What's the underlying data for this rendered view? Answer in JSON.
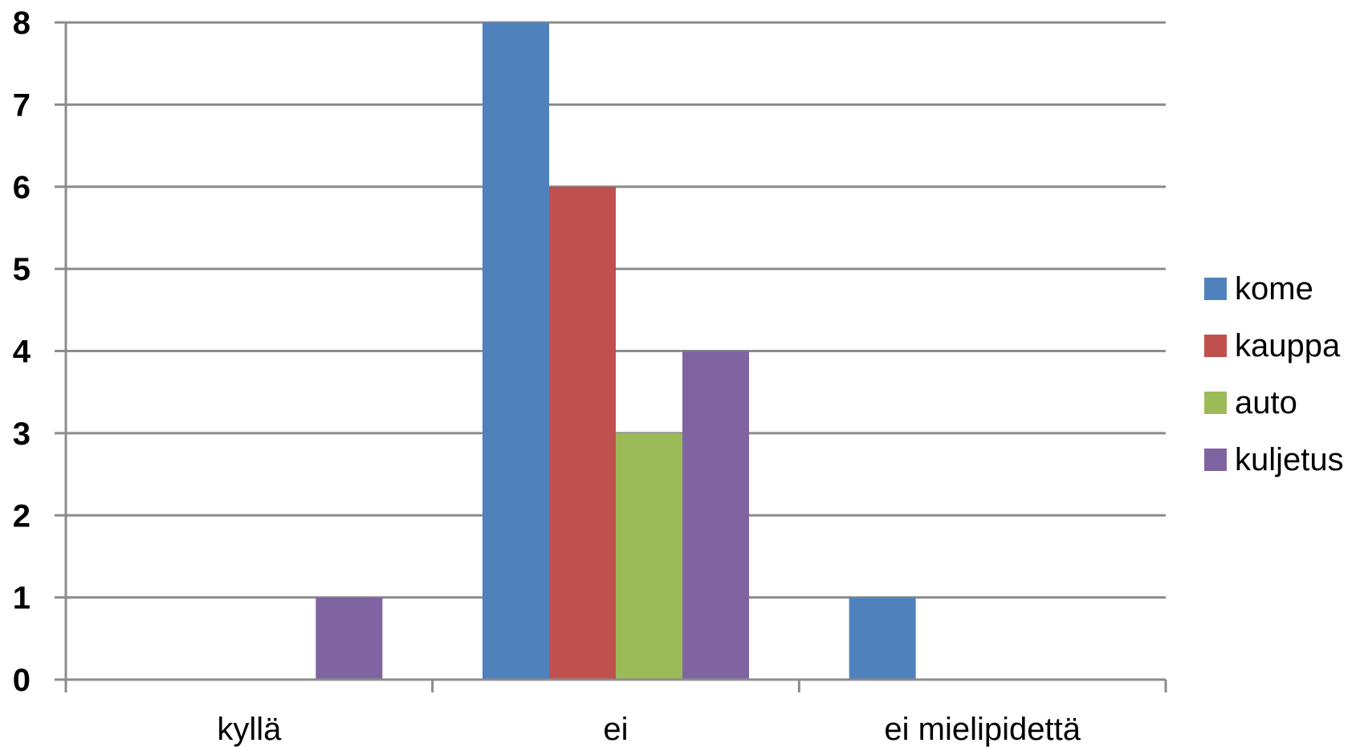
{
  "chart_data": {
    "type": "bar",
    "categories": [
      "kyllä",
      "ei",
      "ei mielipidettä"
    ],
    "series": [
      {
        "name": "kome",
        "color": "#4F81BD",
        "values": [
          0,
          8,
          1
        ]
      },
      {
        "name": "kauppa",
        "color": "#C0504D",
        "values": [
          0,
          6,
          0
        ]
      },
      {
        "name": "auto",
        "color": "#9BBB59",
        "values": [
          0,
          3,
          0
        ]
      },
      {
        "name": "kuljetus",
        "color": "#8064A2",
        "values": [
          1,
          4,
          0
        ]
      }
    ],
    "ylim": [
      0,
      8
    ],
    "yticks": [
      "0",
      "1",
      "2",
      "3",
      "4",
      "5",
      "6",
      "7",
      "8"
    ],
    "grid": true,
    "legend": "right"
  }
}
